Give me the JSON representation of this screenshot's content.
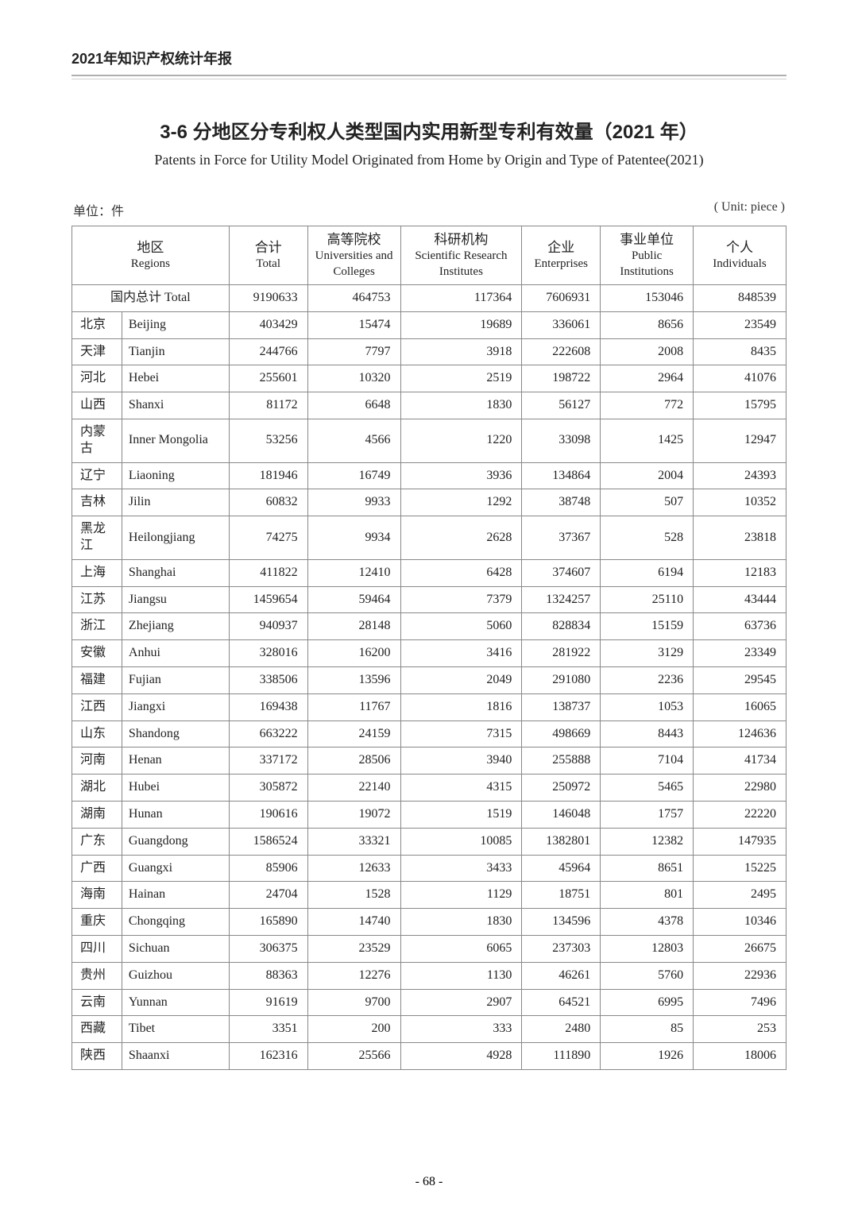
{
  "header": "2021年知识产权统计年报",
  "main_title": "3-6  分地区分专利权人类型国内实用新型专利有效量（2021 年）",
  "sub_title": "Patents in Force for Utility Model Originated from Home by Origin and Type of Patentee(2021)",
  "unit_left": "单位：件",
  "unit_right": "( Unit: piece )",
  "page_number": "- 68 -",
  "columns": {
    "region": {
      "cn": "地区",
      "en": "Regions"
    },
    "total": {
      "cn": "合计",
      "en": "Total"
    },
    "univ": {
      "cn": "高等院校",
      "en": "Universities and Colleges"
    },
    "inst": {
      "cn": "科研机构",
      "en": "Scientific Research Institutes"
    },
    "ent": {
      "cn": "企业",
      "en": "Enterprises"
    },
    "pub": {
      "cn": "事业单位",
      "en": "Public Institutions"
    },
    "ind": {
      "cn": "个人",
      "en": "Individuals"
    }
  },
  "total_row": {
    "label": "国内总计 Total",
    "total": "9190633",
    "univ": "464753",
    "inst": "117364",
    "ent": "7606931",
    "pub": "153046",
    "ind": "848539"
  },
  "rows": [
    {
      "cn": "北京",
      "en": "Beijing",
      "total": "403429",
      "univ": "15474",
      "inst": "19689",
      "ent": "336061",
      "pub": "8656",
      "ind": "23549"
    },
    {
      "cn": "天津",
      "en": "Tianjin",
      "total": "244766",
      "univ": "7797",
      "inst": "3918",
      "ent": "222608",
      "pub": "2008",
      "ind": "8435"
    },
    {
      "cn": "河北",
      "en": "Hebei",
      "total": "255601",
      "univ": "10320",
      "inst": "2519",
      "ent": "198722",
      "pub": "2964",
      "ind": "41076"
    },
    {
      "cn": "山西",
      "en": "Shanxi",
      "total": "81172",
      "univ": "6648",
      "inst": "1830",
      "ent": "56127",
      "pub": "772",
      "ind": "15795"
    },
    {
      "cn": "内蒙古",
      "en": "Inner Mongolia",
      "total": "53256",
      "univ": "4566",
      "inst": "1220",
      "ent": "33098",
      "pub": "1425",
      "ind": "12947"
    },
    {
      "cn": "辽宁",
      "en": "Liaoning",
      "total": "181946",
      "univ": "16749",
      "inst": "3936",
      "ent": "134864",
      "pub": "2004",
      "ind": "24393"
    },
    {
      "cn": "吉林",
      "en": "Jilin",
      "total": "60832",
      "univ": "9933",
      "inst": "1292",
      "ent": "38748",
      "pub": "507",
      "ind": "10352"
    },
    {
      "cn": "黑龙江",
      "en": "Heilongjiang",
      "total": "74275",
      "univ": "9934",
      "inst": "2628",
      "ent": "37367",
      "pub": "528",
      "ind": "23818"
    },
    {
      "cn": "上海",
      "en": "Shanghai",
      "total": "411822",
      "univ": "12410",
      "inst": "6428",
      "ent": "374607",
      "pub": "6194",
      "ind": "12183"
    },
    {
      "cn": "江苏",
      "en": "Jiangsu",
      "total": "1459654",
      "univ": "59464",
      "inst": "7379",
      "ent": "1324257",
      "pub": "25110",
      "ind": "43444"
    },
    {
      "cn": "浙江",
      "en": "Zhejiang",
      "total": "940937",
      "univ": "28148",
      "inst": "5060",
      "ent": "828834",
      "pub": "15159",
      "ind": "63736"
    },
    {
      "cn": "安徽",
      "en": "Anhui",
      "total": "328016",
      "univ": "16200",
      "inst": "3416",
      "ent": "281922",
      "pub": "3129",
      "ind": "23349"
    },
    {
      "cn": "福建",
      "en": "Fujian",
      "total": "338506",
      "univ": "13596",
      "inst": "2049",
      "ent": "291080",
      "pub": "2236",
      "ind": "29545"
    },
    {
      "cn": "江西",
      "en": "Jiangxi",
      "total": "169438",
      "univ": "11767",
      "inst": "1816",
      "ent": "138737",
      "pub": "1053",
      "ind": "16065"
    },
    {
      "cn": "山东",
      "en": "Shandong",
      "total": "663222",
      "univ": "24159",
      "inst": "7315",
      "ent": "498669",
      "pub": "8443",
      "ind": "124636"
    },
    {
      "cn": "河南",
      "en": "Henan",
      "total": "337172",
      "univ": "28506",
      "inst": "3940",
      "ent": "255888",
      "pub": "7104",
      "ind": "41734"
    },
    {
      "cn": "湖北",
      "en": "Hubei",
      "total": "305872",
      "univ": "22140",
      "inst": "4315",
      "ent": "250972",
      "pub": "5465",
      "ind": "22980"
    },
    {
      "cn": "湖南",
      "en": "Hunan",
      "total": "190616",
      "univ": "19072",
      "inst": "1519",
      "ent": "146048",
      "pub": "1757",
      "ind": "22220"
    },
    {
      "cn": "广东",
      "en": "Guangdong",
      "total": "1586524",
      "univ": "33321",
      "inst": "10085",
      "ent": "1382801",
      "pub": "12382",
      "ind": "147935"
    },
    {
      "cn": "广西",
      "en": "Guangxi",
      "total": "85906",
      "univ": "12633",
      "inst": "3433",
      "ent": "45964",
      "pub": "8651",
      "ind": "15225"
    },
    {
      "cn": "海南",
      "en": "Hainan",
      "total": "24704",
      "univ": "1528",
      "inst": "1129",
      "ent": "18751",
      "pub": "801",
      "ind": "2495"
    },
    {
      "cn": "重庆",
      "en": "Chongqing",
      "total": "165890",
      "univ": "14740",
      "inst": "1830",
      "ent": "134596",
      "pub": "4378",
      "ind": "10346"
    },
    {
      "cn": "四川",
      "en": "Sichuan",
      "total": "306375",
      "univ": "23529",
      "inst": "6065",
      "ent": "237303",
      "pub": "12803",
      "ind": "26675"
    },
    {
      "cn": "贵州",
      "en": "Guizhou",
      "total": "88363",
      "univ": "12276",
      "inst": "1130",
      "ent": "46261",
      "pub": "5760",
      "ind": "22936"
    },
    {
      "cn": "云南",
      "en": "Yunnan",
      "total": "91619",
      "univ": "9700",
      "inst": "2907",
      "ent": "64521",
      "pub": "6995",
      "ind": "7496"
    },
    {
      "cn": "西藏",
      "en": "Tibet",
      "total": "3351",
      "univ": "200",
      "inst": "333",
      "ent": "2480",
      "pub": "85",
      "ind": "253"
    },
    {
      "cn": "陕西",
      "en": "Shaanxi",
      "total": "162316",
      "univ": "25566",
      "inst": "4928",
      "ent": "111890",
      "pub": "1926",
      "ind": "18006"
    }
  ],
  "styling": {
    "column_widths_pct": [
      7,
      15,
      11,
      13,
      17,
      11,
      13,
      13
    ],
    "border_color": "#888888",
    "text_color": "#222222",
    "header_font": "SimHei",
    "body_font": "SimSun",
    "num_font": "Times New Roman",
    "title_fontsize": 24,
    "subtitle_fontsize": 18,
    "cell_fontsize": 16
  }
}
